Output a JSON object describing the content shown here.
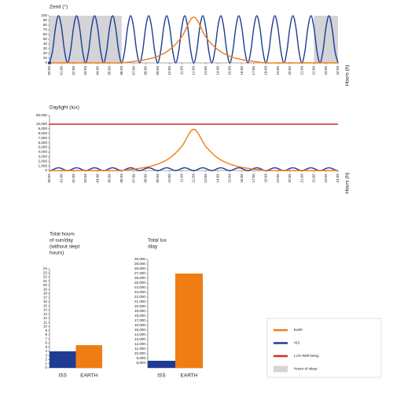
{
  "legend": [
    {
      "name": "Earth",
      "color": "#f07c14",
      "kind": "line"
    },
    {
      "name": "ISS",
      "color": "#1f3c94",
      "kind": "line"
    },
    {
      "name": "LUX Well being",
      "color": "#d62a1e",
      "kind": "line"
    },
    {
      "name": "Hours of sleep",
      "color": "#d3d3d8",
      "kind": "box"
    }
  ],
  "chart_data": [
    {
      "type": "line",
      "title": "Zenit (°)",
      "xlabel": "Hours (h)",
      "xlim": [
        0,
        24
      ],
      "ylim": [
        0,
        100
      ],
      "yticks": [
        0,
        10,
        20,
        30,
        40,
        50,
        60,
        70,
        80,
        90,
        100
      ],
      "xticks": [
        {
          "value": 0,
          "label": "00:00"
        },
        {
          "value": 1,
          "label": "01:00"
        },
        {
          "value": 2,
          "label": "02:00"
        },
        {
          "value": 3,
          "label": "03:00"
        },
        {
          "value": 4,
          "label": "04:00"
        },
        {
          "value": 5,
          "label": "05:00"
        },
        {
          "value": 6,
          "label": "06:00"
        },
        {
          "value": 7,
          "label": "07:00"
        },
        {
          "value": 8,
          "label": "08:00"
        },
        {
          "value": 9,
          "label": "09:00"
        },
        {
          "value": 10,
          "label": "10:00"
        },
        {
          "value": 11,
          "label": "11:00"
        },
        {
          "value": 12,
          "label": "12:00"
        },
        {
          "value": 13,
          "label": "13:00"
        },
        {
          "value": 14,
          "label": "14:00"
        },
        {
          "value": 15,
          "label": "15:00"
        },
        {
          "value": 16,
          "label": "16:00"
        },
        {
          "value": 17,
          "label": "17:00"
        },
        {
          "value": 18,
          "label": "18:00"
        },
        {
          "value": 19,
          "label": "19:00"
        },
        {
          "value": 20,
          "label": "20:00"
        },
        {
          "value": 21,
          "label": "21:00"
        },
        {
          "value": 22,
          "label": "22:00"
        },
        {
          "value": 23,
          "label": "23:00"
        },
        {
          "value": 24,
          "label": "24:00"
        }
      ],
      "sleep_color": "#d3d3d8",
      "sleep_hours": [
        {
          "from": 0,
          "to": 6
        },
        {
          "from": 22,
          "to": 24
        }
      ],
      "series": [
        {
          "name": "ISS",
          "color": "#1f3c94",
          "x": [
            0,
            0.25,
            0.5,
            0.75,
            1,
            1.25,
            1.5,
            1.75,
            2,
            2.25,
            2.5,
            2.75,
            3,
            3.25,
            3.5,
            3.75,
            4,
            4.25,
            4.5,
            4.75,
            5,
            5.25,
            5.5,
            5.75,
            6,
            6.25,
            6.5,
            6.75,
            7,
            7.25,
            7.5,
            7.75,
            8,
            8.25,
            8.5,
            8.75,
            9,
            9.25,
            9.5,
            9.75,
            10,
            10.25,
            10.5,
            10.75,
            11,
            11.25,
            11.5,
            11.75,
            12,
            12.25,
            12.5,
            12.75,
            13,
            13.25,
            13.5,
            13.75,
            14,
            14.25,
            14.5,
            14.75,
            15,
            15.25,
            15.5,
            15.75,
            16,
            16.25,
            16.5,
            16.75,
            17,
            17.25,
            17.5,
            17.75,
            18,
            18.25,
            18.5,
            18.75,
            19,
            19.25,
            19.5,
            19.75,
            20,
            20.25,
            20.5,
            20.75,
            21,
            21.25,
            21.5,
            21.75,
            22,
            22.25,
            22.5,
            22.75,
            23,
            23.25,
            23.5,
            23.75,
            24
          ],
          "values": [
            0,
            25,
            75,
            100,
            75,
            25,
            0,
            25,
            75,
            100,
            75,
            25,
            0,
            25,
            75,
            100,
            75,
            25,
            0,
            25,
            75,
            100,
            75,
            25,
            0,
            25,
            75,
            100,
            75,
            25,
            0,
            25,
            75,
            100,
            75,
            25,
            0,
            25,
            75,
            100,
            75,
            25,
            0,
            25,
            75,
            100,
            75,
            25,
            0,
            25,
            75,
            100,
            75,
            25,
            0,
            25,
            75,
            100,
            75,
            25,
            0,
            25,
            75,
            100,
            75,
            25,
            0,
            25,
            75,
            100,
            75,
            25,
            0,
            25,
            75,
            100,
            75,
            25,
            0,
            25,
            75,
            100,
            75,
            25,
            0,
            25,
            75,
            100,
            75,
            25,
            0,
            25,
            75,
            100,
            75,
            25,
            0
          ]
        },
        {
          "name": "Earth",
          "color": "#f07c14",
          "x": [
            0,
            1,
            2,
            3,
            4,
            5,
            6,
            7,
            8,
            9,
            10,
            11,
            12,
            13,
            14,
            15,
            16,
            17,
            18,
            19,
            20,
            21,
            22,
            23,
            24
          ],
          "values": [
            0,
            0,
            0,
            0,
            0,
            0,
            0,
            3,
            7,
            14,
            28,
            55,
            97,
            55,
            28,
            14,
            7,
            3,
            0,
            0,
            0,
            0,
            0,
            0,
            0
          ]
        }
      ]
    },
    {
      "type": "line",
      "title": "Daylight (lux)",
      "xlabel": "Hours (h)",
      "xlim": [
        0,
        24
      ],
      "ylim": [
        0,
        10000
      ],
      "axis_break": true,
      "yticks": [
        0,
        {
          "value": 1000,
          "label": "1,000"
        },
        {
          "value": 2000,
          "label": "2,000"
        },
        {
          "value": 3000,
          "label": "3,000"
        },
        {
          "value": 4000,
          "label": "4,000"
        },
        {
          "value": 5000,
          "label": "5,000"
        },
        {
          "value": 6000,
          "label": "6,000"
        },
        {
          "value": 7000,
          "label": "7,000"
        },
        {
          "value": 8000,
          "label": "8,000"
        },
        {
          "value": 9000,
          "label": "9,000"
        },
        {
          "value": 10000,
          "label": "10,000"
        },
        {
          "value": 80000,
          "label": "80,000"
        }
      ],
      "xticks": [
        {
          "value": 0,
          "label": "00:00"
        },
        {
          "value": 1,
          "label": "01:00"
        },
        {
          "value": 2,
          "label": "02:00"
        },
        {
          "value": 3,
          "label": "03:00"
        },
        {
          "value": 4,
          "label": "04:00"
        },
        {
          "value": 5,
          "label": "05:00"
        },
        {
          "value": 6,
          "label": "06:00"
        },
        {
          "value": 7,
          "label": "07:00"
        },
        {
          "value": 8,
          "label": "08:00"
        },
        {
          "value": 9,
          "label": "09:00"
        },
        {
          "value": 10,
          "label": "10:00"
        },
        {
          "value": 11,
          "label": "11:00"
        },
        {
          "value": 12,
          "label": "12:00"
        },
        {
          "value": 13,
          "label": "13:00"
        },
        {
          "value": 14,
          "label": "14:00"
        },
        {
          "value": 15,
          "label": "15:00"
        },
        {
          "value": 16,
          "label": "16:00"
        },
        {
          "value": 17,
          "label": "17:00"
        },
        {
          "value": 18,
          "label": "18:00"
        },
        {
          "value": 19,
          "label": "19:00"
        },
        {
          "value": 20,
          "label": "20:00"
        },
        {
          "value": 21,
          "label": "21:00"
        },
        {
          "value": 22,
          "label": "22:00"
        },
        {
          "value": 23,
          "label": "23:00"
        },
        {
          "value": 24,
          "label": "24:00"
        }
      ],
      "series": [
        {
          "name": "LUX Well being",
          "color": "#d62a1e",
          "x": [
            0,
            24
          ],
          "values": [
            10000,
            10000
          ]
        },
        {
          "name": "ISS",
          "color": "#1f3c94",
          "x": [
            0,
            0.25,
            0.5,
            0.75,
            1,
            1.25,
            1.5,
            1.75,
            2,
            2.25,
            2.5,
            2.75,
            3,
            3.25,
            3.5,
            3.75,
            4,
            4.25,
            4.5,
            4.75,
            5,
            5.25,
            5.5,
            5.75,
            6,
            6.25,
            6.5,
            6.75,
            7,
            7.25,
            7.5,
            7.75,
            8,
            8.25,
            8.5,
            8.75,
            9,
            9.25,
            9.5,
            9.75,
            10,
            10.25,
            10.5,
            10.75,
            11,
            11.25,
            11.5,
            11.75,
            12,
            12.25,
            12.5,
            12.75,
            13,
            13.25,
            13.5,
            13.75,
            14,
            14.25,
            14.5,
            14.75,
            15,
            15.25,
            15.5,
            15.75,
            16,
            16.25,
            16.5,
            16.75,
            17,
            17.25,
            17.5,
            17.75,
            18,
            18.25,
            18.5,
            18.75,
            19,
            19.25,
            19.5,
            19.75,
            20,
            20.25,
            20.5,
            20.75,
            21,
            21.25,
            21.5,
            21.75,
            22,
            22.25,
            22.5,
            22.75,
            23,
            23.25,
            23.5,
            23.75,
            24
          ],
          "values": [
            0,
            150,
            450,
            600,
            450,
            150,
            0,
            150,
            450,
            600,
            450,
            150,
            0,
            150,
            450,
            600,
            450,
            150,
            0,
            150,
            450,
            600,
            450,
            150,
            0,
            150,
            450,
            600,
            450,
            150,
            0,
            150,
            450,
            600,
            450,
            150,
            0,
            150,
            450,
            600,
            450,
            150,
            0,
            150,
            450,
            600,
            450,
            150,
            0,
            150,
            450,
            600,
            450,
            150,
            0,
            150,
            450,
            600,
            450,
            150,
            0,
            150,
            450,
            600,
            450,
            150,
            0,
            150,
            450,
            600,
            450,
            150,
            0,
            150,
            450,
            600,
            450,
            150,
            0,
            150,
            450,
            600,
            450,
            150,
            0,
            150,
            450,
            600,
            450,
            150,
            0,
            150,
            450,
            600,
            450,
            150,
            0
          ]
        },
        {
          "name": "Earth",
          "color": "#f07c14",
          "x": [
            0,
            1,
            2,
            3,
            4,
            5,
            6,
            7,
            8,
            9,
            10,
            11,
            12,
            13,
            14,
            15,
            16,
            17,
            18,
            19,
            20,
            21,
            22,
            23,
            24
          ],
          "values": [
            0,
            0,
            0,
            0,
            0,
            0,
            0,
            300,
            700,
            1400,
            2700,
            5200,
            8900,
            5200,
            2700,
            1400,
            700,
            300,
            0,
            0,
            0,
            0,
            0,
            0,
            0
          ]
        }
      ]
    },
    {
      "type": "bar",
      "title": [
        "Total hours",
        "of sun/day",
        "(without slept",
        "hours)"
      ],
      "categories": [
        "ISS",
        "EARTH"
      ],
      "values": [
        4,
        5.5
      ],
      "colors": [
        "#1f3c94",
        "#f07c14"
      ],
      "ylim": [
        0,
        24
      ],
      "yticks": [
        0,
        1,
        2,
        3,
        4,
        5,
        6,
        7,
        8,
        9,
        10,
        11,
        12,
        13,
        14,
        15,
        16,
        17,
        18,
        19,
        20,
        21,
        22,
        23,
        24
      ]
    },
    {
      "type": "bar",
      "title": [
        "Total lux",
        "/day"
      ],
      "categories": [
        "ISS",
        "EARTH"
      ],
      "values": [
        8500,
        27000
      ],
      "colors": [
        "#1f3c94",
        "#f07c14"
      ],
      "ylim": [
        7000,
        30000
      ],
      "yticks": [
        {
          "value": 8000,
          "label": "8,000"
        },
        {
          "value": 9000,
          "label": "9,000"
        },
        {
          "value": 10000,
          "label": "10,000"
        },
        {
          "value": 11000,
          "label": "11,000"
        },
        {
          "value": 12000,
          "label": "12,000"
        },
        {
          "value": 13000,
          "label": "13,000"
        },
        {
          "value": 14000,
          "label": "14,000"
        },
        {
          "value": 15000,
          "label": "15,000"
        },
        {
          "value": 16000,
          "label": "16,000"
        },
        {
          "value": 17000,
          "label": "17,000"
        },
        {
          "value": 18000,
          "label": "18,000"
        },
        {
          "value": 19000,
          "label": "19,000"
        },
        {
          "value": 20000,
          "label": "20,000"
        },
        {
          "value": 21000,
          "label": "21,000"
        },
        {
          "value": 22000,
          "label": "22,000"
        },
        {
          "value": 23000,
          "label": "23,000"
        },
        {
          "value": 24000,
          "label": "24,000"
        },
        {
          "value": 25000,
          "label": "25,000"
        },
        {
          "value": 26000,
          "label": "26,000"
        },
        {
          "value": 27000,
          "label": "27,000"
        },
        {
          "value": 28000,
          "label": "28,000"
        },
        {
          "value": 29000,
          "label": "29,000"
        },
        {
          "value": 30000,
          "label": "30,000"
        }
      ]
    }
  ]
}
